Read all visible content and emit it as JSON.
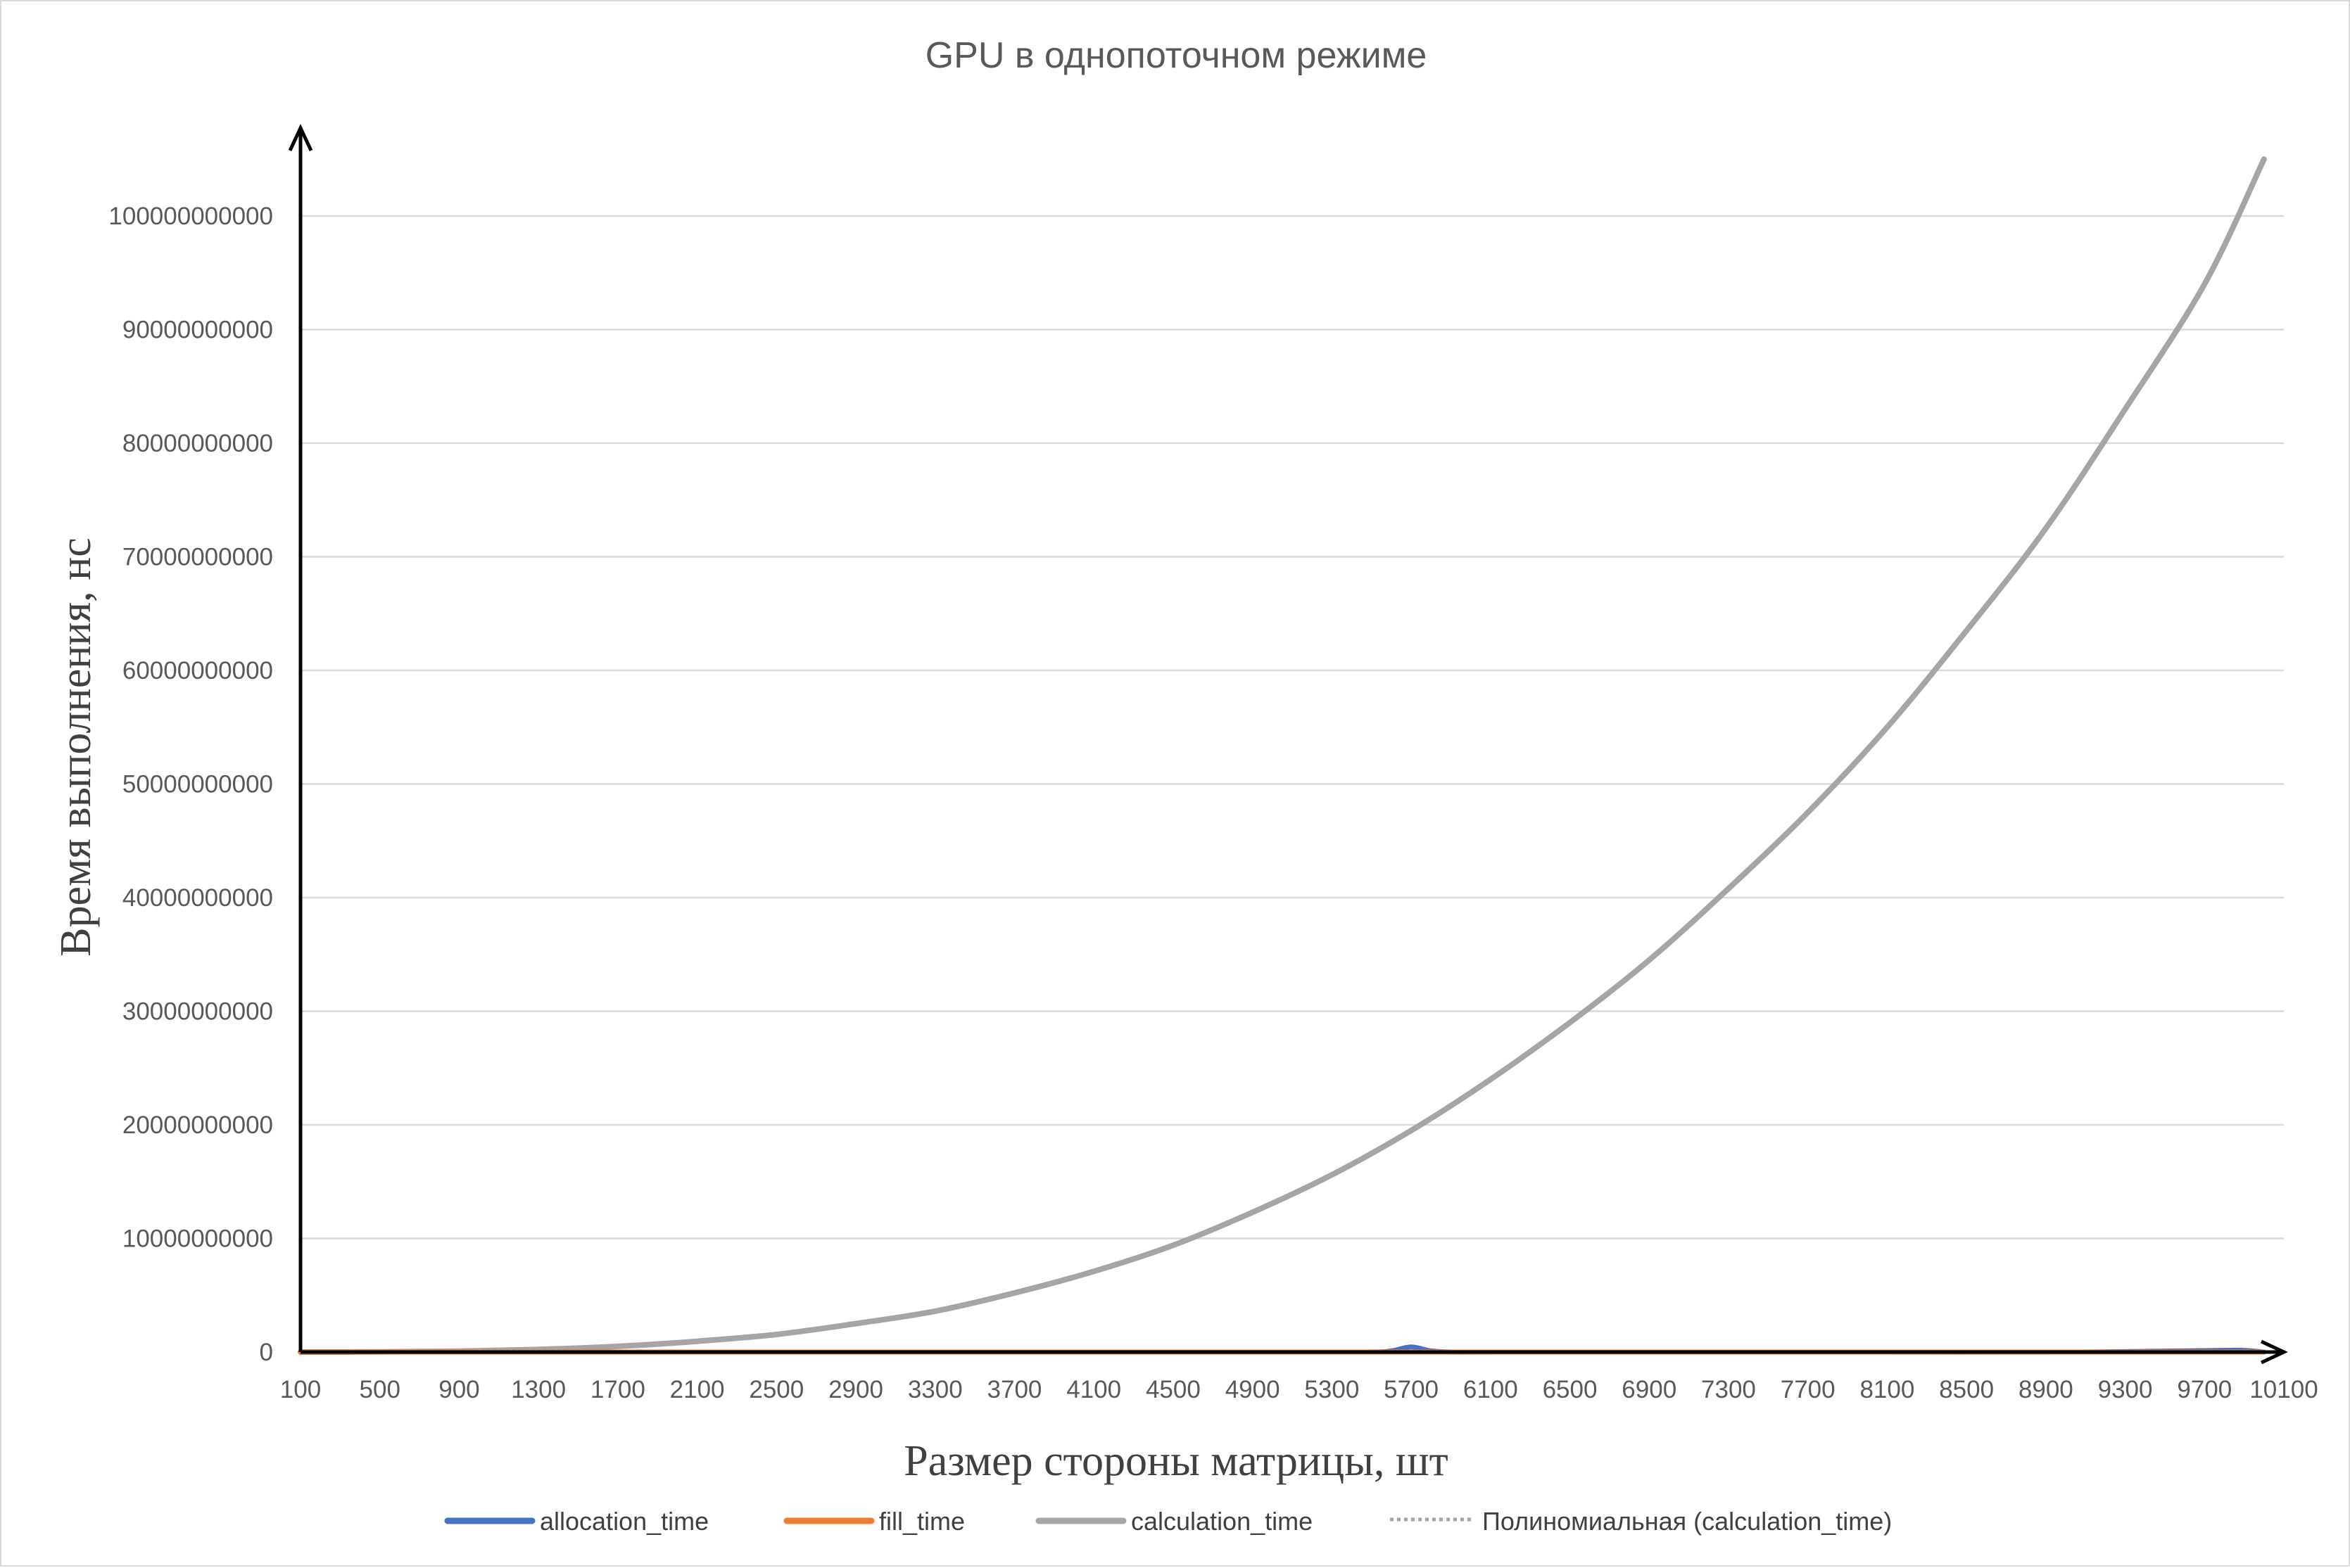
{
  "chart_data": {
    "type": "line",
    "title": "GPU в однопоточном режиме",
    "xlabel": "Размер стороны матрицы, шт",
    "ylabel": "Время выполнения, нс",
    "xlim": [
      100,
      10100
    ],
    "ylim": [
      0,
      105000000000
    ],
    "x_ticks": [
      "100",
      "500",
      "900",
      "1300",
      "1700",
      "2100",
      "2500",
      "2900",
      "3300",
      "3700",
      "4100",
      "4500",
      "4900",
      "5300",
      "5700",
      "6100",
      "6500",
      "6900",
      "7300",
      "7700",
      "8100",
      "8500",
      "8900",
      "9300",
      "9700",
      "10100"
    ],
    "y_ticks": [
      "0",
      "10000000000",
      "20000000000",
      "30000000000",
      "40000000000",
      "50000000000",
      "60000000000",
      "70000000000",
      "80000000000",
      "90000000000",
      "100000000000"
    ],
    "grid": true,
    "legend_position": "bottom",
    "series": [
      {
        "name": "allocation_time",
        "color": "#4472C4",
        "x": [
          100,
          1100,
          2100,
          3100,
          4100,
          5100,
          5500,
          5600,
          5700,
          5800,
          5900,
          6100,
          7100,
          8100,
          9100,
          9800,
          9900,
          10000
        ],
        "y": [
          0,
          0,
          0,
          0,
          0,
          0,
          0,
          100000000,
          450000000,
          100000000,
          0,
          0,
          0,
          0,
          0,
          150000000,
          150000000,
          0
        ]
      },
      {
        "name": "fill_time",
        "color": "#ED7D31",
        "x": [
          100,
          2100,
          4100,
          6100,
          8100,
          10000
        ],
        "y": [
          0,
          0,
          0,
          0,
          0,
          0
        ]
      },
      {
        "name": "calculation_time",
        "color": "#A5A5A5",
        "x": [
          100,
          500,
          900,
          1300,
          1700,
          2100,
          2500,
          2900,
          3300,
          3700,
          4100,
          4500,
          4900,
          5300,
          5700,
          6100,
          6500,
          6900,
          7300,
          7700,
          8100,
          8500,
          8900,
          9300,
          9700,
          10000
        ],
        "y": [
          0,
          12000000,
          80000000,
          230000000,
          500000000,
          950000000,
          1550000000,
          2500000000,
          3600000000,
          5200000000,
          7100000000,
          9400000000,
          12300000000,
          15600000000,
          19500000000,
          24000000000,
          29000000000,
          34500000000,
          40800000000,
          47500000000,
          55000000000,
          63500000000,
          72500000000,
          83000000000,
          94000000000,
          105000000000
        ]
      }
    ],
    "trendline": {
      "name": "Полиномиальная (calculation_time)",
      "color": "#A5A5A5",
      "style": "dotted",
      "of_series": "calculation_time"
    }
  }
}
